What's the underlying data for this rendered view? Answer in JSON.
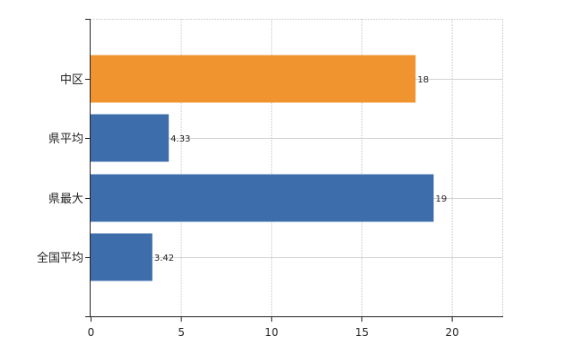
{
  "chart_data": {
    "type": "bar",
    "orientation": "horizontal",
    "categories": [
      "中区",
      "県平均",
      "県最大",
      "全国平均"
    ],
    "values": [
      18,
      4.33,
      19,
      3.42
    ],
    "data_labels": [
      "18",
      "4.33",
      "19",
      "3.42"
    ],
    "xlim": [
      0,
      22.8
    ],
    "xticks": [
      0,
      5,
      10,
      15,
      20
    ],
    "xtick_labels": [
      "0",
      "5",
      "10",
      "15",
      "20"
    ],
    "grid": true,
    "legend": "none",
    "colors": {
      "highlight": "#f0942f",
      "default": "#3d6eab",
      "grid": "#d3d3d3",
      "axis": "#222222"
    },
    "highlight_index": 0
  }
}
